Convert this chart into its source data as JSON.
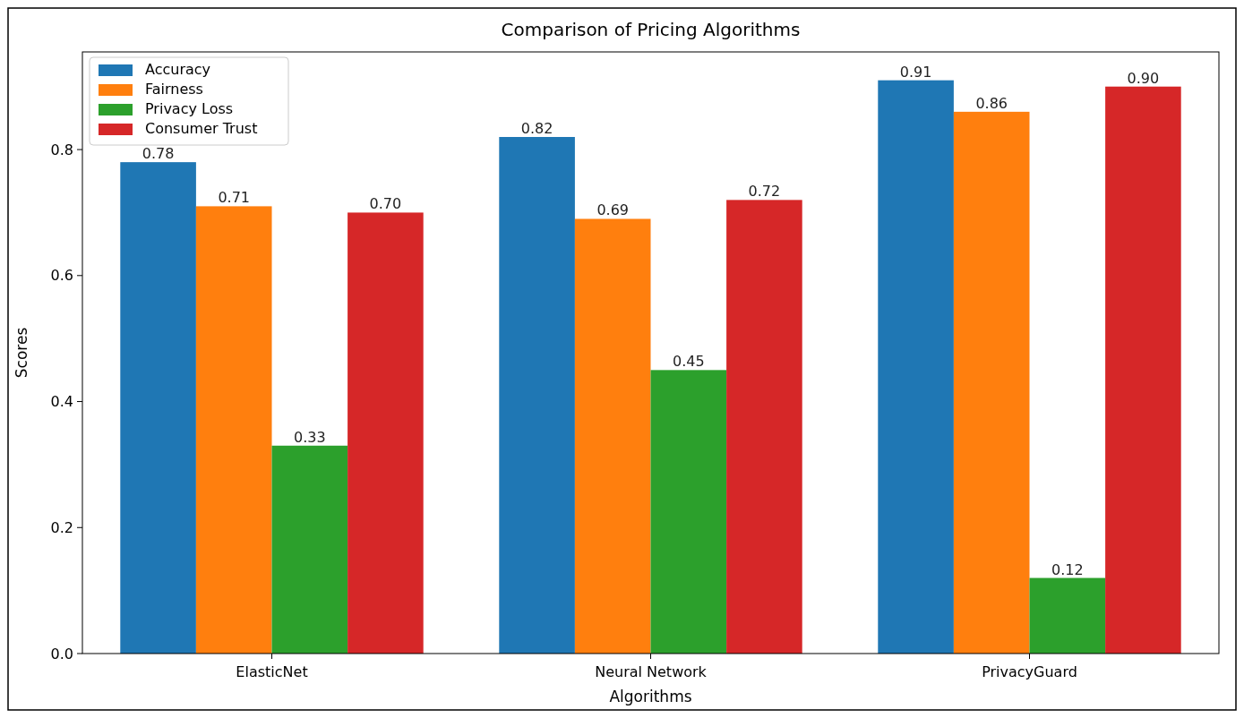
{
  "chart_data": {
    "type": "bar",
    "title": "Comparison of Pricing Algorithms",
    "xlabel": "Algorithms",
    "ylabel": "Scores",
    "categories": [
      "ElasticNet",
      "Neural Network",
      "PrivacyGuard"
    ],
    "series": [
      {
        "name": "Accuracy",
        "color": "#1f77b4",
        "values": [
          0.78,
          0.82,
          0.91
        ],
        "value_labels": [
          "0.78",
          "0.82",
          "0.91"
        ]
      },
      {
        "name": "Fairness",
        "color": "#ff7f0e",
        "values": [
          0.71,
          0.69,
          0.86
        ],
        "value_labels": [
          "0.71",
          "0.69",
          "0.86"
        ]
      },
      {
        "name": "Privacy Loss",
        "color": "#2ca02c",
        "values": [
          0.33,
          0.45,
          0.12
        ],
        "value_labels": [
          "0.33",
          "0.45",
          "0.12"
        ]
      },
      {
        "name": "Consumer Trust",
        "color": "#d62728",
        "values": [
          0.7,
          0.72,
          0.9
        ],
        "value_labels": [
          "0.70",
          "0.72",
          "0.90"
        ]
      }
    ],
    "ylim": [
      0,
      0.955
    ],
    "yticks": [
      {
        "value": 0,
        "label": "0.0"
      },
      {
        "value": 0.2,
        "label": "0.2"
      },
      {
        "value": 0.4,
        "label": "0.4"
      },
      {
        "value": 0.6,
        "label": "0.6"
      },
      {
        "value": 0.8,
        "label": "0.8"
      }
    ],
    "legend": "top left"
  }
}
